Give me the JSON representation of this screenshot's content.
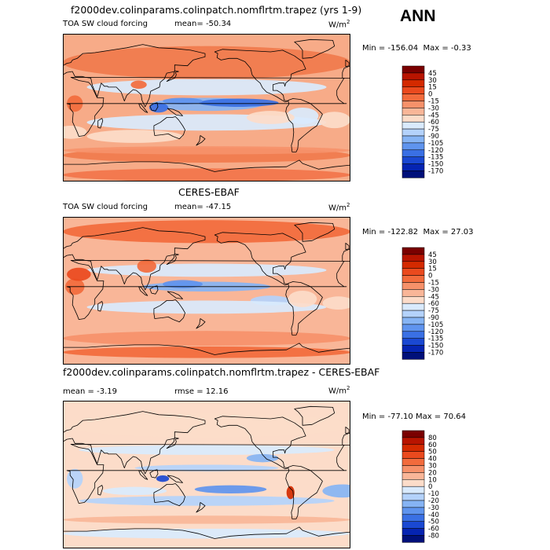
{
  "season": "ANN",
  "panels": [
    {
      "title": "f2000dev.colinparams.colinpatch.nomflrtm.trapez (yrs 1-9)",
      "left_label": "TOA SW cloud forcing",
      "stat_label": "mean=",
      "stat_value": "-50.34",
      "stat2_label": "",
      "stat2_value": "",
      "unit_base": "W/m",
      "unit_exp": "2",
      "min_label": "Min =",
      "min_value": "-156.04",
      "max_label": "Max =",
      "max_value": "-0.33",
      "colorbar": {
        "labels": [
          "45",
          "30",
          "15",
          "0",
          "-15",
          "-30",
          "-45",
          "-60",
          "-75",
          "-90",
          "-105",
          "-120",
          "-135",
          "-150",
          "-170"
        ],
        "colors": [
          "#7a0000",
          "#b81400",
          "#d42a00",
          "#ea4a1e",
          "#f26b3c",
          "#f6916a",
          "#f9b698",
          "#fcdcc9",
          "#d9eafd",
          "#b4d2fb",
          "#86b4f4",
          "#5f94ee",
          "#3a70e4",
          "#1a48d2",
          "#0524b2",
          "#00107a"
        ]
      },
      "map_variant": "model"
    },
    {
      "title": "CERES-EBAF",
      "left_label": "TOA SW cloud forcing",
      "stat_label": "mean=",
      "stat_value": "-47.15",
      "stat2_label": "",
      "stat2_value": "",
      "unit_base": "W/m",
      "unit_exp": "2",
      "min_label": "Min =",
      "min_value": "-122.82",
      "max_label": "Max =",
      "max_value": "27.03",
      "colorbar": {
        "labels": [
          "45",
          "30",
          "15",
          "0",
          "-15",
          "-30",
          "-45",
          "-60",
          "-75",
          "-90",
          "-105",
          "-120",
          "-135",
          "-150",
          "-170"
        ],
        "colors": [
          "#7a0000",
          "#b81400",
          "#d42a00",
          "#ea4a1e",
          "#f26b3c",
          "#f6916a",
          "#f9b698",
          "#fcdcc9",
          "#d9eafd",
          "#b4d2fb",
          "#86b4f4",
          "#5f94ee",
          "#3a70e4",
          "#1a48d2",
          "#0524b2",
          "#00107a"
        ]
      },
      "map_variant": "obs"
    },
    {
      "title": "f2000dev.colinparams.colinpatch.nomflrtm.trapez - CERES-EBAF",
      "left_label": "",
      "stat_label": "mean =",
      "stat_value": "-3.19",
      "stat2_label": "rmse =",
      "stat2_value": "12.16",
      "unit_base": "W/m",
      "unit_exp": "2",
      "min_label": "Min =",
      "min_value": "-77.10",
      "max_label": "Max =",
      "max_value": "70.64",
      "colorbar": {
        "labels": [
          "80",
          "60",
          "50",
          "40",
          "30",
          "20",
          "10",
          "0",
          "-10",
          "-20",
          "-30",
          "-40",
          "-50",
          "-60",
          "-80"
        ],
        "colors": [
          "#7a0000",
          "#b81400",
          "#d42a00",
          "#ea4a1e",
          "#f26b3c",
          "#f6916a",
          "#f9b698",
          "#fcdcc9",
          "#d9eafd",
          "#b4d2fb",
          "#86b4f4",
          "#5f94ee",
          "#3a70e4",
          "#1a48d2",
          "#0524b2",
          "#00107a"
        ]
      },
      "map_variant": "diff"
    }
  ]
}
